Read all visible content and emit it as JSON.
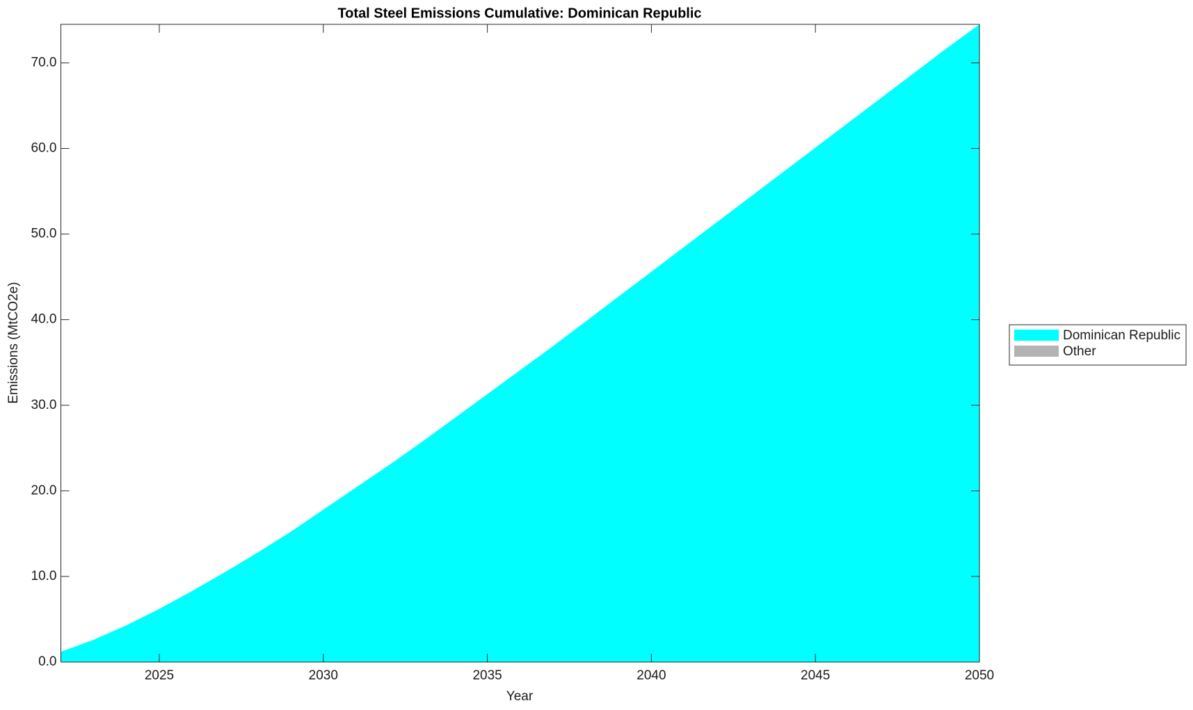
{
  "chart_data": {
    "type": "stacked_area",
    "title": "Total Steel Emissions Cumulative: Dominican Republic",
    "xlabel": "Year",
    "ylabel": "Emissions (MtCO2e)",
    "x": [
      2022,
      2023,
      2024,
      2025,
      2026,
      2027,
      2028,
      2029,
      2030,
      2031,
      2032,
      2033,
      2034,
      2035,
      2036,
      2037,
      2038,
      2039,
      2040,
      2041,
      2042,
      2043,
      2044,
      2045,
      2046,
      2047,
      2048,
      2049,
      2050
    ],
    "series": [
      {
        "name": "Dominican Republic",
        "color": "#00ffff",
        "values": [
          1.2,
          2.6,
          4.3,
          6.2,
          8.3,
          10.5,
          12.8,
          15.2,
          17.8,
          20.4,
          23.0,
          25.7,
          28.5,
          31.3,
          34.1,
          36.9,
          39.8,
          42.7,
          45.6,
          48.5,
          51.4,
          54.3,
          57.2,
          60.1,
          63.0,
          65.9,
          68.8,
          71.7,
          74.5
        ]
      },
      {
        "name": "Other",
        "color": "#b3b3b3",
        "values": [
          0,
          0,
          0,
          0,
          0,
          0,
          0,
          0,
          0,
          0,
          0,
          0,
          0,
          0,
          0,
          0,
          0,
          0,
          0,
          0,
          0,
          0,
          0,
          0,
          0,
          0,
          0,
          0,
          0
        ]
      }
    ],
    "xlim": [
      2022,
      2050
    ],
    "xticks": [
      2025,
      2030,
      2035,
      2040,
      2045,
      2050
    ],
    "ylim": [
      0,
      74.5
    ],
    "yticks": [
      {
        "value": 0,
        "label": "0.0"
      },
      {
        "value": 10,
        "label": "10.0"
      },
      {
        "value": 20,
        "label": "20.0"
      },
      {
        "value": 30,
        "label": "30.0"
      },
      {
        "value": 40,
        "label": "40.0"
      },
      {
        "value": 50,
        "label": "50.0"
      },
      {
        "value": 60,
        "label": "60.0"
      },
      {
        "value": 70,
        "label": "70.0"
      }
    ],
    "legend": "outside-right",
    "grid": false
  }
}
